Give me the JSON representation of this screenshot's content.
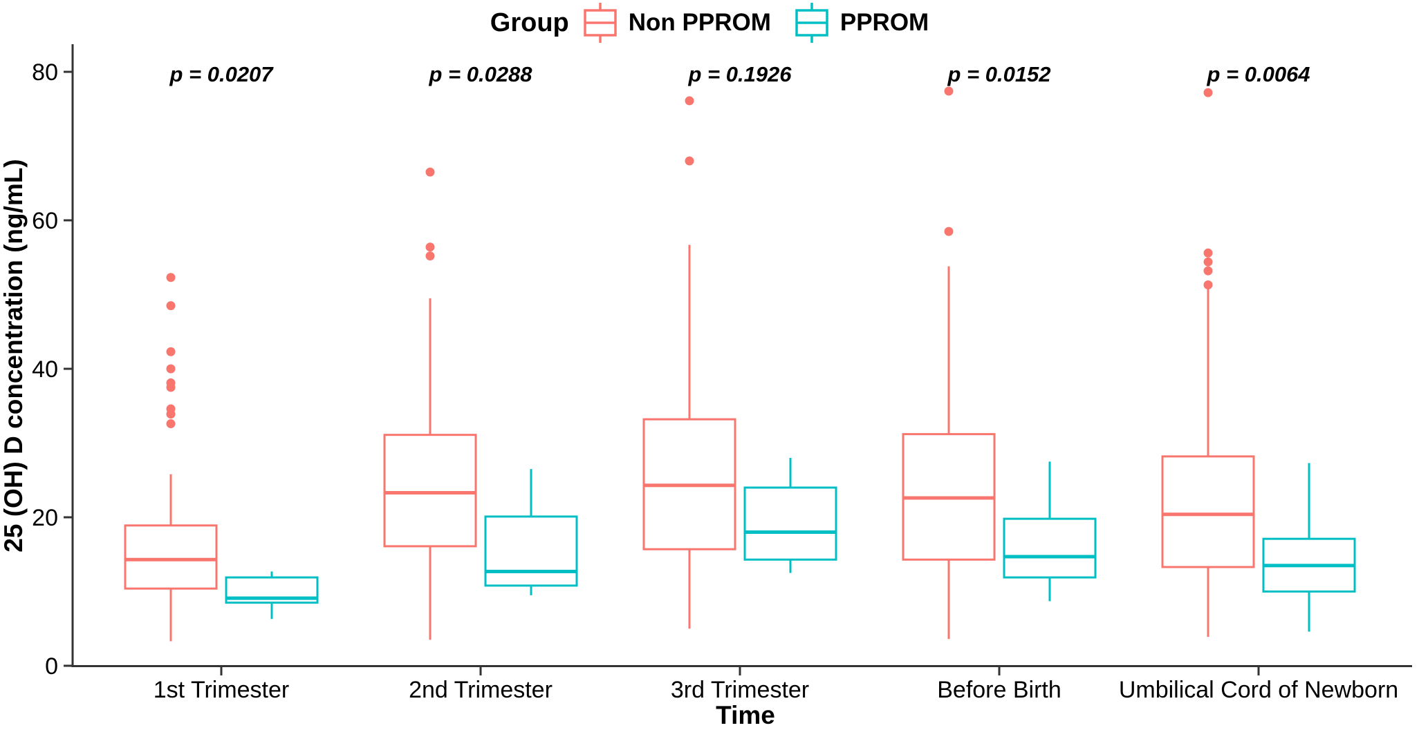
{
  "chart_data": {
    "type": "grouped_boxplot",
    "legend_title": "Group",
    "xlabel": "Time",
    "ylabel": "25 (OH) D concentration (ng/mL)",
    "ylim": [
      0,
      80
    ],
    "yticks": [
      0,
      20,
      40,
      60,
      80
    ],
    "grid": "off",
    "legend_position": "top-center",
    "categories": [
      "1st Trimester",
      "2nd Trimester",
      "3rd Trimester",
      "Before Birth",
      "Umbilical Cord of Newborn"
    ],
    "p_values": [
      "p = 0.0207",
      "p = 0.0288",
      "p = 0.1926",
      "p = 0.0152",
      "p = 0.0064"
    ],
    "axis_color": "#333333",
    "series": [
      {
        "name": "Non PPROM",
        "color": "#F8766D",
        "boxes": [
          {
            "low": 3.3,
            "q1": 10.4,
            "median": 14.3,
            "q3": 18.9,
            "high": 25.8,
            "outliers": [
              32.6,
              33.9,
              34.6,
              37.5,
              38.1,
              40.0,
              42.3,
              48.5,
              52.3
            ]
          },
          {
            "low": 3.5,
            "q1": 16.1,
            "median": 23.3,
            "q3": 31.1,
            "high": 49.5,
            "outliers": [
              55.2,
              56.4,
              66.5
            ]
          },
          {
            "low": 5.0,
            "q1": 15.7,
            "median": 24.3,
            "q3": 33.2,
            "high": 56.7,
            "outliers": [
              68.0,
              76.1
            ]
          },
          {
            "low": 3.6,
            "q1": 14.3,
            "median": 22.6,
            "q3": 31.2,
            "high": 53.8,
            "outliers": [
              58.5,
              77.4
            ]
          },
          {
            "low": 3.9,
            "q1": 13.3,
            "median": 20.4,
            "q3": 28.2,
            "high": 51.0,
            "outliers": [
              51.3,
              53.2,
              54.4,
              55.6,
              77.2
            ]
          }
        ]
      },
      {
        "name": "PPROM",
        "color": "#00BFC4",
        "boxes": [
          {
            "low": 6.3,
            "q1": 8.5,
            "median": 9.1,
            "q3": 11.9,
            "high": 12.7,
            "outliers": []
          },
          {
            "low": 9.5,
            "q1": 10.8,
            "median": 12.7,
            "q3": 20.1,
            "high": 26.5,
            "outliers": []
          },
          {
            "low": 12.5,
            "q1": 14.3,
            "median": 18.0,
            "q3": 24.0,
            "high": 28.0,
            "outliers": []
          },
          {
            "low": 8.7,
            "q1": 11.9,
            "median": 14.7,
            "q3": 19.8,
            "high": 27.5,
            "outliers": []
          },
          {
            "low": 4.6,
            "q1": 10.0,
            "median": 13.5,
            "q3": 17.1,
            "high": 27.3,
            "outliers": []
          }
        ]
      }
    ]
  }
}
